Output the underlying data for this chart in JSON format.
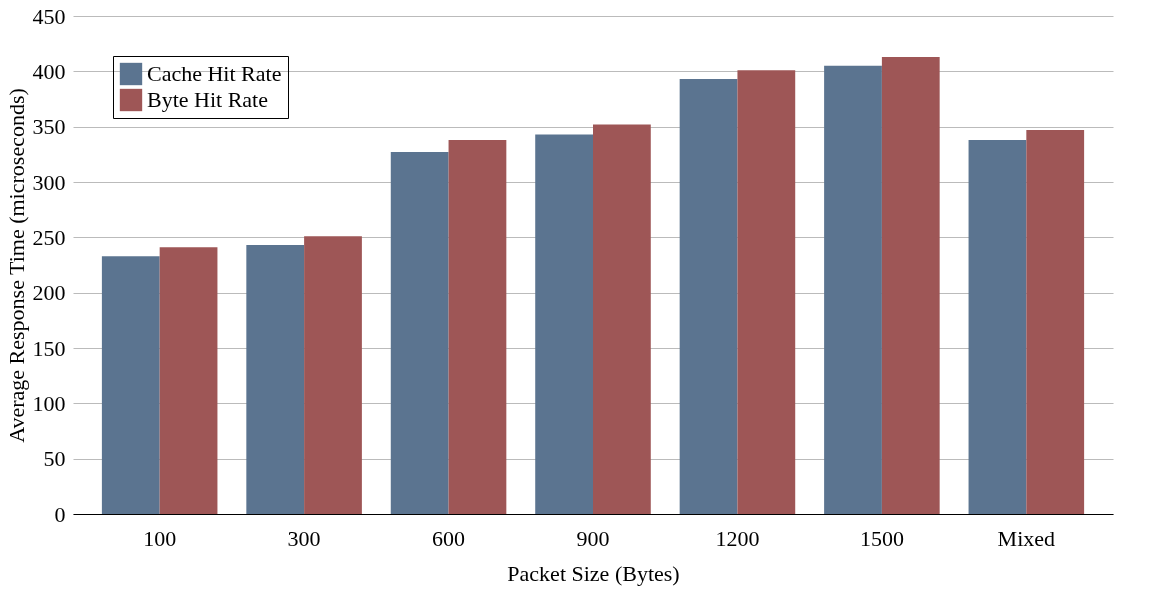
{
  "chart_data": {
    "type": "bar",
    "xlabel": "Packet Size (Bytes)",
    "ylabel": "Average Response Time (microseconds)",
    "categories": [
      "100",
      "300",
      "600",
      "900",
      "1200",
      "1500",
      "Mixed"
    ],
    "series": [
      {
        "name": "Cache Hit Rate",
        "color": "#5b7490",
        "values": [
          233,
          243,
          327,
          343,
          393,
          405,
          338
        ]
      },
      {
        "name": "Byte Hit Rate",
        "color": "#9e5656",
        "values": [
          241,
          251,
          338,
          352,
          401,
          413,
          347
        ]
      }
    ],
    "ylim": [
      0,
      450
    ],
    "yticks": [
      0,
      50,
      100,
      150,
      200,
      250,
      300,
      350,
      400,
      450
    ],
    "grid": "y",
    "legend": "top left"
  }
}
